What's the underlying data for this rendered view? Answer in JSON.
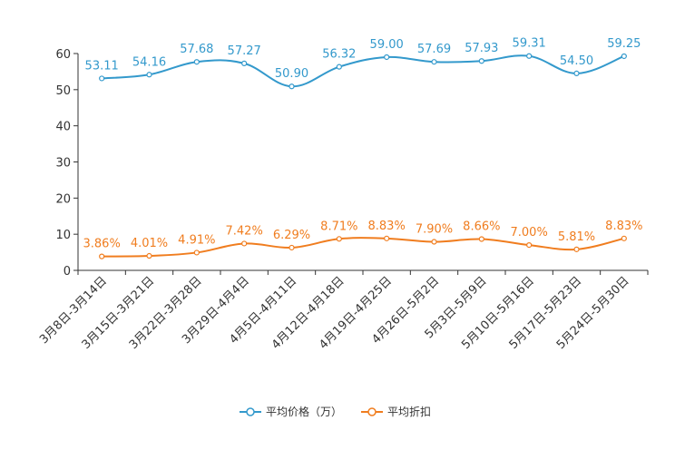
{
  "chart_data": {
    "type": "line",
    "title": "",
    "xlabel": "",
    "ylabel": "",
    "ylim": [
      0,
      60
    ],
    "yticks": [
      0,
      10,
      20,
      30,
      40,
      50,
      60
    ],
    "categories": [
      "3月8日-3月14日",
      "3月15日-3月21日",
      "3月22日-3月28日",
      "3月29日-4月4日",
      "4月5日-4月11日",
      "4月12日-4月18日",
      "4月19日-4月25日",
      "4月26日-5月2日",
      "5月3日-5月9日",
      "5月10日-5月16日",
      "5月17日-5月23日",
      "5月24日-5月30日"
    ],
    "series": [
      {
        "name": "平均价格（万）",
        "color": "#3399cc",
        "values": [
          53.11,
          54.16,
          57.68,
          57.27,
          50.9,
          56.32,
          59.0,
          57.69,
          57.93,
          59.31,
          54.5,
          59.25
        ],
        "labels": [
          "53.11",
          "54.16",
          "57.68",
          "57.27",
          "50.90",
          "56.32",
          "59.00",
          "57.69",
          "57.93",
          "59.31",
          "54.50",
          "59.25"
        ]
      },
      {
        "name": "平均折扣",
        "color": "#f07d1f",
        "values": [
          3.86,
          4.01,
          4.91,
          7.42,
          6.29,
          8.71,
          8.83,
          7.9,
          8.66,
          7.0,
          5.81,
          8.83
        ],
        "labels": [
          "3.86%",
          "4.01%",
          "4.91%",
          "7.42%",
          "6.29%",
          "8.71%",
          "8.83%",
          "7.90%",
          "8.66%",
          "7.00%",
          "5.81%",
          "8.83%"
        ]
      }
    ],
    "legend_position": "bottom-center",
    "grid": false
  }
}
